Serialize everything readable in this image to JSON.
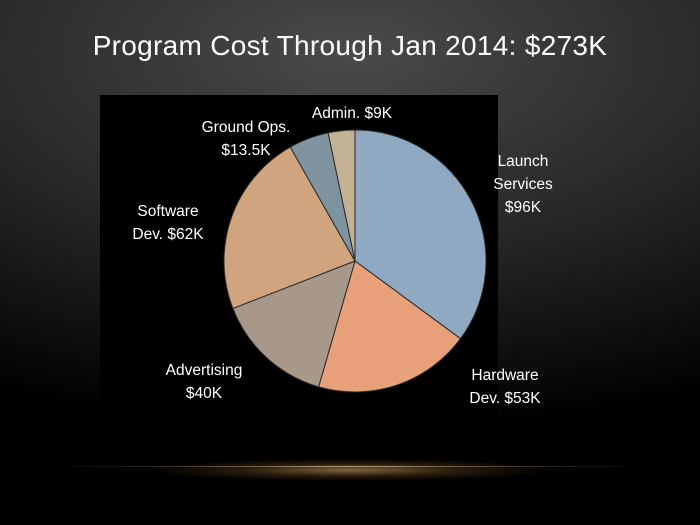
{
  "slide": {
    "title": "Program Cost Through Jan 2014: $273K"
  },
  "chart_data": {
    "type": "pie",
    "title": "Program Cost Through Jan 2014: $273K",
    "unit": "$K",
    "total": 273,
    "slices": [
      {
        "name": "Launch Services",
        "value": 96,
        "label_lines": [
          "Launch",
          "Services",
          "$96K"
        ],
        "color": "#8fa9c2"
      },
      {
        "name": "Hardware Dev.",
        "value": 53,
        "label_lines": [
          "Hardware",
          "Dev. $53K"
        ],
        "color": "#e8a07a"
      },
      {
        "name": "Advertising",
        "value": 40,
        "label_lines": [
          "Advertising",
          "$40K"
        ],
        "color": "#a8988a"
      },
      {
        "name": "Software Dev.",
        "value": 62,
        "label_lines": [
          "Software",
          "Dev. $62K"
        ],
        "color": "#cfa47f"
      },
      {
        "name": "Ground Ops.",
        "value": 13.5,
        "label_lines": [
          "Ground Ops.",
          "$13.5K"
        ],
        "color": "#7f93a0"
      },
      {
        "name": "Admin.",
        "value": 9,
        "label_lines": [
          "Admin. $9K"
        ],
        "color": "#c3b294"
      }
    ]
  }
}
